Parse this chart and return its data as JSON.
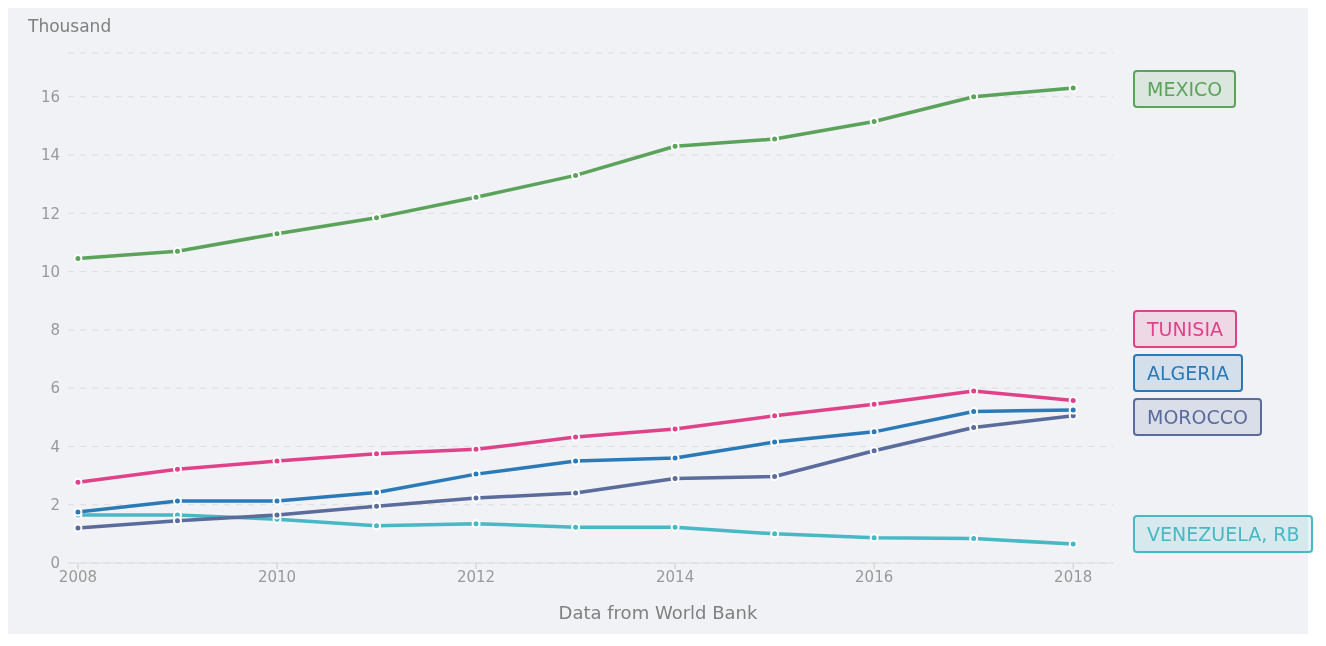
{
  "chart_data": {
    "type": "line",
    "ylabel": "Thousand",
    "x": [
      2008,
      2009,
      2010,
      2011,
      2012,
      2013,
      2014,
      2015,
      2016,
      2017,
      2018
    ],
    "series": [
      {
        "name": "MEXICO",
        "color": "#5ba35b",
        "values": [
          10.45,
          10.7,
          11.3,
          11.85,
          12.55,
          13.3,
          14.3,
          14.55,
          15.15,
          16.0,
          16.3
        ]
      },
      {
        "name": "TUNISIA",
        "color": "#e0428a",
        "values": [
          2.77,
          3.22,
          3.5,
          3.75,
          3.9,
          4.32,
          4.6,
          5.05,
          5.45,
          5.9,
          5.58
        ]
      },
      {
        "name": "ALGERIA",
        "color": "#2a7ab8",
        "values": [
          1.75,
          2.13,
          2.13,
          2.42,
          3.05,
          3.5,
          3.6,
          4.15,
          4.5,
          5.2,
          5.25
        ]
      },
      {
        "name": "MOROCCO",
        "color": "#5a6b9c",
        "values": [
          1.2,
          1.45,
          1.65,
          1.95,
          2.23,
          2.4,
          2.9,
          2.97,
          3.85,
          4.65,
          5.05
        ]
      },
      {
        "name": "VENEZUELA, RB",
        "color": "#47b8c4",
        "values": [
          1.65,
          1.65,
          1.5,
          1.28,
          1.35,
          1.23,
          1.23,
          1.0,
          0.87,
          0.84,
          0.65
        ]
      }
    ],
    "xlim": [
      2007.9,
      2018.4
    ],
    "xticks": [
      2008,
      2010,
      2012,
      2014,
      2016,
      2018
    ],
    "ylim": [
      0,
      17.5
    ],
    "yticks": [
      0,
      2,
      4,
      6,
      8,
      10,
      12,
      14,
      16
    ],
    "grid": "y",
    "legend": false,
    "marker": "circle",
    "line_style": "solid",
    "annotations": [
      "Data from World Bank"
    ]
  }
}
